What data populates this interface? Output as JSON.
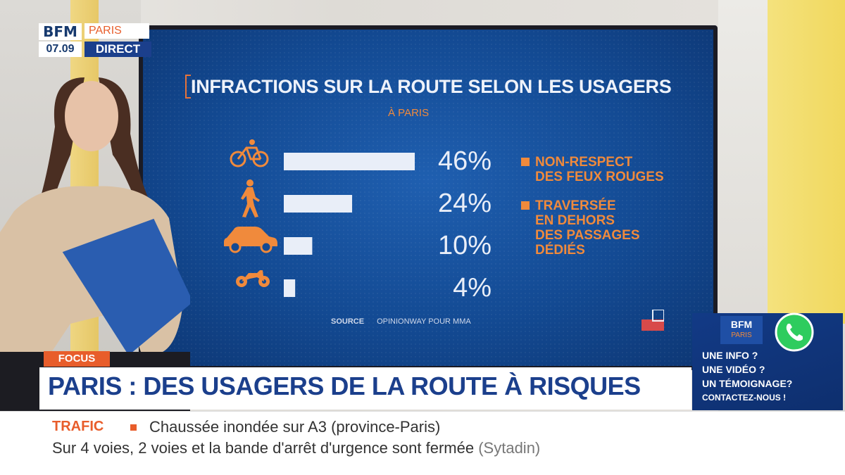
{
  "channel": {
    "logo_text": "BFM",
    "city": "PARIS",
    "time": "07.09",
    "live_label": "DIRECT"
  },
  "chart_data": {
    "type": "bar",
    "orientation": "horizontal",
    "title": "INFRACTIONS SUR LA ROUTE SELON LES USAGERS",
    "subtitle": "À PARIS",
    "categories": [
      "bicycle-icon",
      "pedestrian-icon",
      "car-icon",
      "motorcycle-icon"
    ],
    "values": [
      46,
      24,
      10,
      4
    ],
    "value_labels": [
      "46%",
      "24%",
      "10%",
      "4%"
    ],
    "xlim": [
      0,
      46
    ],
    "grid": false,
    "colors": {
      "bar": "#e9eef8",
      "accent": "#f08a3c",
      "background": "#134a93"
    },
    "legend": [
      {
        "label": "NON-RESPECT\nDES FEUX ROUGES"
      },
      {
        "label": "TRAVERSÉE\nEN DEHORS\nDES PASSAGES\nDÉDIÉS"
      }
    ],
    "legend_placement": "right",
    "source_label": "SOURCE",
    "source_text": "OPINIONWAY POUR MMA"
  },
  "lower_third": {
    "tag": "FOCUS",
    "headline": "PARIS : DES USAGERS DE LA ROUTE À RISQUES"
  },
  "ticker": {
    "label": "TRAFIC",
    "line1": "Chaussée inondée sur A3 (province-Paris)",
    "line2_main": "Sur 4 voies, 2 voies et la bande d'arrêt d'urgence sont fermée",
    "line2_source": "(Sytadin)"
  },
  "promo": {
    "logo_text": "BFM",
    "logo_city": "PARIS",
    "line1": "UNE INFO ?",
    "line2": "UNE VIDÉO ?",
    "line3": "UN TÉMOIGNAGE?",
    "line4": "CONTACTEZ-NOUS !",
    "icon": "whatsapp-icon"
  }
}
